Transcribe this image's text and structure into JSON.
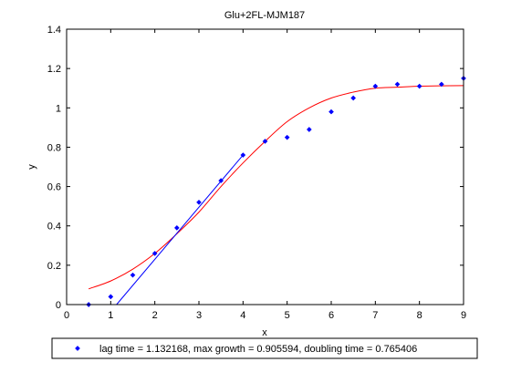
{
  "chart_data": {
    "type": "scatter",
    "title": "Glu+2FL-MJM187",
    "xlabel": "x",
    "ylabel": "y",
    "xlim": [
      0,
      9
    ],
    "ylim": [
      0,
      1.4
    ],
    "xticks": [
      0,
      1,
      2,
      3,
      4,
      5,
      6,
      7,
      8,
      9
    ],
    "yticks": [
      0,
      0.2,
      0.4,
      0.6,
      0.8,
      1,
      1.2,
      1.4
    ],
    "xtick_labels": [
      "0",
      "1",
      "2",
      "3",
      "4",
      "5",
      "6",
      "7",
      "8",
      "9"
    ],
    "ytick_labels": [
      "0",
      "0.2",
      "0.4",
      "0.6",
      "0.8",
      "1",
      "1.2",
      "1.4"
    ],
    "grid": false,
    "legend": {
      "placement": "bottom-outside",
      "entries": [
        "lag time = 1.132168, max growth = 0.905594, doubling time = 0.765406"
      ]
    },
    "colors": {
      "points": "#0000ff",
      "fit": "#ff0000",
      "tangent": "#0000ff"
    },
    "points": {
      "x": [
        0.5,
        1.0,
        1.5,
        2.0,
        2.5,
        3.0,
        3.5,
        4.0,
        4.5,
        5.0,
        5.5,
        6.0,
        6.5,
        7.0,
        7.5,
        8.0,
        8.5,
        9.0
      ],
      "y": [
        0.0,
        0.04,
        0.15,
        0.26,
        0.39,
        0.52,
        0.63,
        0.76,
        0.83,
        0.85,
        0.89,
        0.98,
        1.05,
        1.11,
        1.12,
        1.11,
        1.12,
        1.15
      ]
    },
    "fit_curve": {
      "x": [
        0.5,
        1.0,
        1.5,
        2.0,
        2.5,
        3.0,
        3.5,
        4.0,
        4.5,
        5.0,
        5.5,
        6.0,
        6.5,
        7.0,
        7.5,
        8.0,
        8.5,
        9.0
      ],
      "y": [
        0.08,
        0.12,
        0.18,
        0.26,
        0.36,
        0.47,
        0.6,
        0.72,
        0.83,
        0.93,
        1.0,
        1.05,
        1.08,
        1.1,
        1.105,
        1.11,
        1.112,
        1.113
      ]
    },
    "tangent_line": {
      "x": [
        1.132168,
        4.0
      ],
      "y": [
        0,
        0.76
      ]
    }
  }
}
